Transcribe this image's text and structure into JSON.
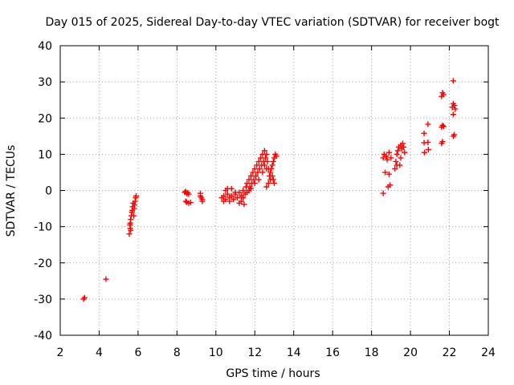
{
  "chart_data": {
    "type": "scatter",
    "title": "Day 015 of 2025, Sidereal Day-to-day VTEC variation (SDTVAR) for receiver bogt",
    "xlabel": "GPS time / hours",
    "ylabel": "SDTVAR / TECUs",
    "xlim": [
      2,
      24
    ],
    "ylim": [
      -40,
      40
    ],
    "xticks": [
      2,
      4,
      6,
      8,
      10,
      12,
      14,
      16,
      18,
      20,
      22,
      24
    ],
    "yticks": [
      -40,
      -30,
      -20,
      -10,
      0,
      10,
      20,
      30,
      40
    ],
    "xtick_labels": [
      "2",
      "4",
      "6",
      "8",
      "10",
      "12",
      "14",
      "16",
      "18",
      "20",
      "22",
      "24"
    ],
    "ytick_labels": [
      "-40",
      "-30",
      "-20",
      "-10",
      "0",
      "10",
      "20",
      "30",
      "40"
    ],
    "grid": true,
    "marker": "plus",
    "series": [
      {
        "name": "SDTVAR",
        "color": "#ff0000",
        "points": [
          [
            3.2,
            -30.0
          ],
          [
            3.25,
            -29.6
          ],
          [
            4.35,
            -24.5
          ],
          [
            5.55,
            -12.0
          ],
          [
            5.6,
            -10.5
          ],
          [
            5.6,
            -9.0
          ],
          [
            5.62,
            -8.0
          ],
          [
            5.65,
            -7.0
          ],
          [
            5.68,
            -6.0
          ],
          [
            5.7,
            -5.5
          ],
          [
            5.72,
            -4.5
          ],
          [
            5.75,
            -3.5
          ],
          [
            5.78,
            -7.0
          ],
          [
            5.8,
            -5.0
          ],
          [
            5.82,
            -4.0
          ],
          [
            5.85,
            -3.0
          ],
          [
            5.88,
            -2.0
          ],
          [
            5.9,
            -1.5
          ],
          [
            5.62,
            -11.0
          ],
          [
            5.58,
            -9.5
          ],
          [
            8.4,
            -0.5
          ],
          [
            8.45,
            -0.3
          ],
          [
            8.5,
            -0.8
          ],
          [
            8.55,
            -0.6
          ],
          [
            8.6,
            -1.0
          ],
          [
            8.45,
            -3.0
          ],
          [
            8.5,
            -3.2
          ],
          [
            8.6,
            -3.5
          ],
          [
            8.7,
            -3.3
          ],
          [
            9.2,
            -1.5
          ],
          [
            9.25,
            -2.0
          ],
          [
            9.3,
            -2.5
          ],
          [
            9.2,
            -0.8
          ],
          [
            9.3,
            -3.0
          ],
          [
            10.3,
            -2.0
          ],
          [
            10.4,
            -1.5
          ],
          [
            10.5,
            -2.5
          ],
          [
            10.6,
            -1.0
          ],
          [
            10.7,
            -2.0
          ],
          [
            10.8,
            -1.5
          ],
          [
            10.9,
            -2.5
          ],
          [
            11.0,
            -1.0
          ],
          [
            11.1,
            -2.0
          ],
          [
            11.2,
            -0.5
          ],
          [
            11.3,
            -1.5
          ],
          [
            11.4,
            0.0
          ],
          [
            11.5,
            -1.0
          ],
          [
            11.2,
            -3.5
          ],
          [
            11.3,
            -3.0
          ],
          [
            11.4,
            -2.0
          ],
          [
            10.5,
            0.0
          ],
          [
            10.6,
            0.5
          ],
          [
            10.8,
            0.5
          ],
          [
            11.0,
            -0.5
          ],
          [
            10.4,
            -3.0
          ],
          [
            10.7,
            -3.0
          ],
          [
            11.45,
            -3.8
          ],
          [
            11.55,
            1.0
          ],
          [
            11.6,
            2.0
          ],
          [
            11.7,
            3.0
          ],
          [
            11.75,
            1.0
          ],
          [
            11.8,
            4.0
          ],
          [
            11.85,
            2.0
          ],
          [
            11.9,
            5.0
          ],
          [
            11.95,
            3.0
          ],
          [
            12.0,
            6.0
          ],
          [
            12.05,
            4.0
          ],
          [
            12.1,
            7.0
          ],
          [
            12.15,
            5.0
          ],
          [
            12.2,
            8.0
          ],
          [
            12.25,
            6.0
          ],
          [
            12.3,
            9.0
          ],
          [
            12.35,
            7.0
          ],
          [
            12.4,
            10.0
          ],
          [
            12.45,
            8.0
          ],
          [
            12.5,
            11.0
          ],
          [
            12.55,
            9.0
          ],
          [
            12.6,
            10.0
          ],
          [
            12.65,
            8.0
          ],
          [
            12.7,
            6.0
          ],
          [
            12.75,
            4.0
          ],
          [
            11.6,
            -0.5
          ],
          [
            11.7,
            0.0
          ],
          [
            11.8,
            0.5
          ],
          [
            12.0,
            2.0
          ],
          [
            12.2,
            3.0
          ],
          [
            12.4,
            5.0
          ],
          [
            12.6,
            6.0
          ],
          [
            12.5,
            7.0
          ],
          [
            12.8,
            5.0
          ],
          [
            12.85,
            6.0
          ],
          [
            12.9,
            7.0
          ],
          [
            12.95,
            8.0
          ],
          [
            13.0,
            9.0
          ],
          [
            13.05,
            10.0
          ],
          [
            13.1,
            9.5
          ],
          [
            12.9,
            4.0
          ],
          [
            12.95,
            3.0
          ],
          [
            13.0,
            2.0
          ],
          [
            12.8,
            3.0
          ],
          [
            12.7,
            2.0
          ],
          [
            12.6,
            1.0
          ],
          [
            18.6,
            -0.8
          ],
          [
            18.6,
            9.0
          ],
          [
            18.65,
            10.0
          ],
          [
            18.7,
            5.0
          ],
          [
            18.75,
            9.5
          ],
          [
            18.8,
            8.5
          ],
          [
            18.85,
            1.0
          ],
          [
            18.9,
            4.5
          ],
          [
            18.9,
            10.5
          ],
          [
            18.95,
            1.5
          ],
          [
            19.0,
            9.0
          ],
          [
            19.2,
            6.0
          ],
          [
            19.25,
            8.0
          ],
          [
            19.3,
            10.0
          ],
          [
            19.35,
            11.0
          ],
          [
            19.4,
            12.0
          ],
          [
            19.45,
            7.0
          ],
          [
            19.5,
            9.0
          ],
          [
            19.55,
            11.5
          ],
          [
            19.6,
            13.0
          ],
          [
            19.65,
            12.0
          ],
          [
            19.7,
            10.5
          ],
          [
            19.3,
            7.0
          ],
          [
            19.5,
            12.5
          ],
          [
            20.7,
            15.8
          ],
          [
            20.7,
            13.2
          ],
          [
            20.72,
            10.5
          ],
          [
            20.9,
            18.3
          ],
          [
            20.9,
            13.3
          ],
          [
            20.92,
            11.3
          ],
          [
            21.6,
            26.0
          ],
          [
            21.65,
            27.0
          ],
          [
            21.7,
            26.5
          ],
          [
            21.6,
            17.5
          ],
          [
            21.65,
            18.0
          ],
          [
            21.7,
            17.7
          ],
          [
            21.6,
            13.0
          ],
          [
            21.65,
            13.5
          ],
          [
            22.2,
            30.3
          ],
          [
            22.15,
            23.0
          ],
          [
            22.2,
            24.0
          ],
          [
            22.25,
            23.5
          ],
          [
            22.3,
            22.5
          ],
          [
            22.2,
            21.0
          ],
          [
            22.2,
            15.0
          ],
          [
            22.25,
            15.4
          ]
        ]
      }
    ]
  }
}
